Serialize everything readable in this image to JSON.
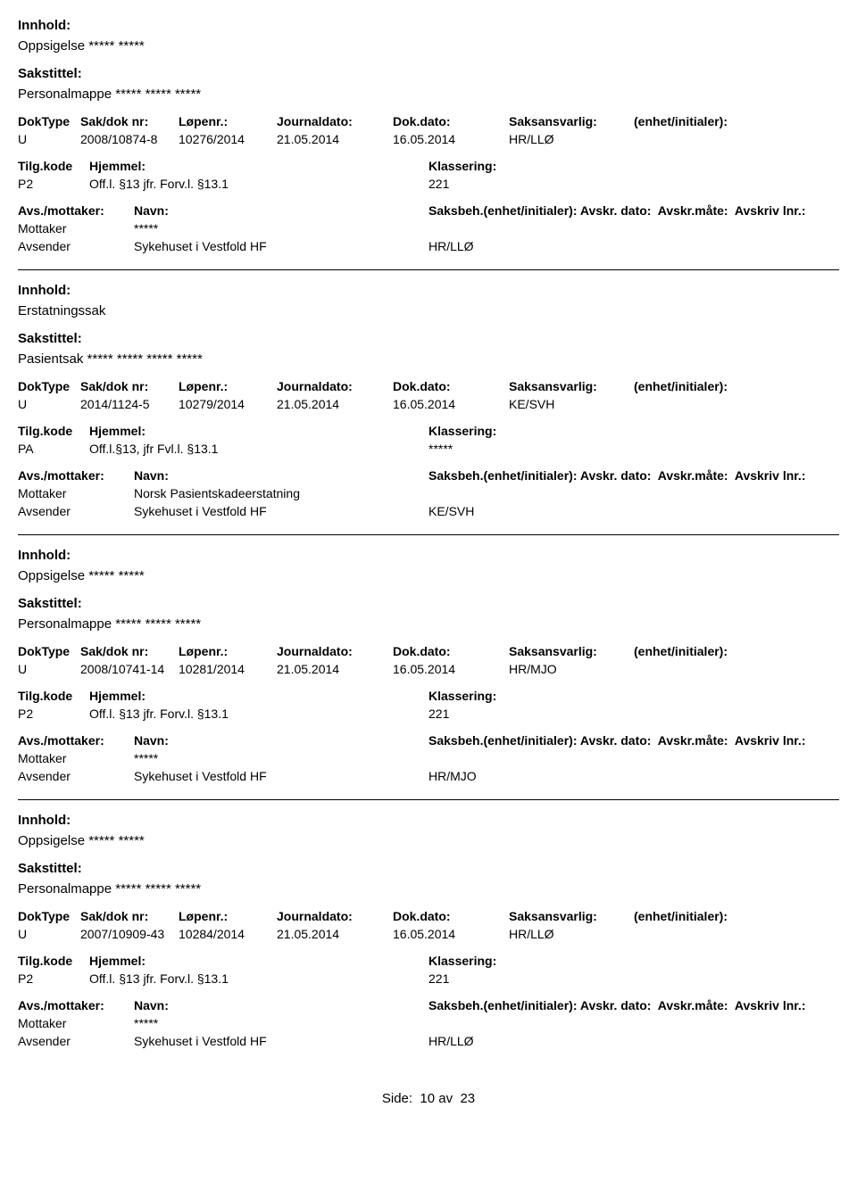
{
  "labels": {
    "innhold": "Innhold:",
    "sakstittel": "Sakstittel:",
    "doktype": "DokType",
    "sakdok": "Sak/dok nr:",
    "lopenr": "Løpenr.:",
    "journaldato": "Journaldato:",
    "dokdato": "Dok.dato:",
    "saksansvarlig": "Saksansvarlig:",
    "enhet_initialer": "(enhet/initialer):",
    "tilgkode": "Tilg.kode",
    "hjemmel": "Hjemmel:",
    "klassering": "Klassering:",
    "avs_mottaker": "Avs./mottaker:",
    "navn": "Navn:",
    "saksbeh": "Saksbeh.(enhet/initialer):",
    "avskr_dato": "Avskr. dato:",
    "avskr_mate": "Avskr.måte:",
    "avskriv_lnr": "Avskriv lnr.:",
    "mottaker": "Mottaker",
    "avsender": "Avsender",
    "side": "Side:",
    "av": "av"
  },
  "footer": {
    "page": "10",
    "total": "23"
  },
  "entries": [
    {
      "innhold": "Oppsigelse ***** *****",
      "sakstittel": "Personalmappe ***** ***** *****",
      "doktype": "U",
      "sakdok": "2008/10874-8",
      "lopenr": "10276/2014",
      "journaldato": "21.05.2014",
      "dokdato": "16.05.2014",
      "saksansvarlig": "HR/LLØ",
      "tilgkode": "P2",
      "hjemmel": "Off.l. §13  jfr.  Forv.l. §13.1",
      "klassering": "221",
      "mottaker_navn": "*****",
      "avsender_navn": "Sykehuset i Vestfold HF",
      "avsender_enhet": "HR/LLØ"
    },
    {
      "innhold": "Erstatningssak",
      "sakstittel": "Pasientsak ***** ***** ***** *****",
      "doktype": "U",
      "sakdok": "2014/1124-5",
      "lopenr": "10279/2014",
      "journaldato": "21.05.2014",
      "dokdato": "16.05.2014",
      "saksansvarlig": "KE/SVH",
      "tilgkode": "PA",
      "hjemmel": "Off.l.§13, jfr Fvl.l. §13.1",
      "klassering": "*****",
      "mottaker_navn": "Norsk Pasientskadeerstatning",
      "avsender_navn": "Sykehuset i Vestfold HF",
      "avsender_enhet": "KE/SVH"
    },
    {
      "innhold": "Oppsigelse ***** *****",
      "sakstittel": "Personalmappe ***** ***** *****",
      "doktype": "U",
      "sakdok": "2008/10741-14",
      "lopenr": "10281/2014",
      "journaldato": "21.05.2014",
      "dokdato": "16.05.2014",
      "saksansvarlig": "HR/MJO",
      "tilgkode": "P2",
      "hjemmel": "Off.l. §13  jfr.  Forv.l. §13.1",
      "klassering": "221",
      "mottaker_navn": "*****",
      "avsender_navn": "Sykehuset i Vestfold HF",
      "avsender_enhet": "HR/MJO"
    },
    {
      "innhold": "Oppsigelse ***** *****",
      "sakstittel": "Personalmappe ***** ***** *****",
      "doktype": "U",
      "sakdok": "2007/10909-43",
      "lopenr": "10284/2014",
      "journaldato": "21.05.2014",
      "dokdato": "16.05.2014",
      "saksansvarlig": "HR/LLØ",
      "tilgkode": "P2",
      "hjemmel": "Off.l. §13  jfr.  Forv.l. §13.1",
      "klassering": "221",
      "mottaker_navn": "*****",
      "avsender_navn": "Sykehuset i Vestfold HF",
      "avsender_enhet": "HR/LLØ"
    }
  ]
}
